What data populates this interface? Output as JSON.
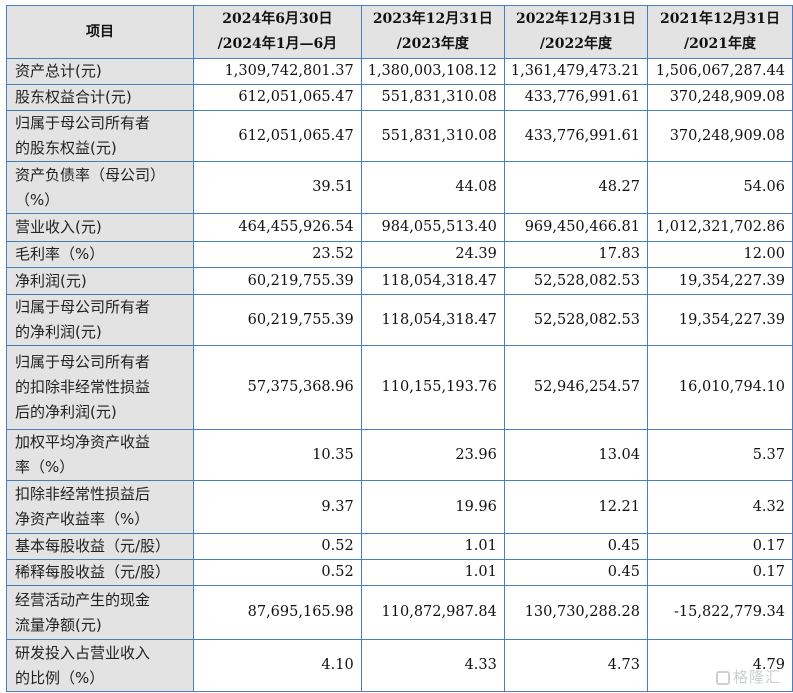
{
  "table": {
    "header": {
      "item": "项目",
      "columns": [
        {
          "line1": "2024年6月30日",
          "line2": "/2024年1月—6月"
        },
        {
          "line1": "2023年12月31日",
          "line2": "/2023年度"
        },
        {
          "line1": "2022年12月31日",
          "line2": "/2022年度"
        },
        {
          "line1": "2021年12月31日",
          "line2": "/2021年度"
        }
      ]
    },
    "rows": [
      {
        "label": "资产总计(元)",
        "values": [
          "1,309,742,801.37",
          "1,380,003,108.12",
          "1,361,479,473.21",
          "1,506,067,287.44"
        ]
      },
      {
        "label": "股东权益合计(元)",
        "values": [
          "612,051,065.47",
          "551,831,310.08",
          "433,776,991.61",
          "370,248,909.08"
        ]
      },
      {
        "label": "归属于母公司所有者\n的股东权益(元)",
        "values": [
          "612,051,065.47",
          "551,831,310.08",
          "433,776,991.61",
          "370,248,909.08"
        ]
      },
      {
        "label": "资产负债率（母公司）\n（%）",
        "values": [
          "39.51",
          "44.08",
          "48.27",
          "54.06"
        ]
      },
      {
        "label": "营业收入(元)",
        "values": [
          "464,455,926.54",
          "984,055,513.40",
          "969,450,466.81",
          "1,012,321,702.86"
        ]
      },
      {
        "label": "毛利率（%）",
        "values": [
          "23.52",
          "24.39",
          "17.83",
          "12.00"
        ]
      },
      {
        "label": "净利润(元)",
        "values": [
          "60,219,755.39",
          "118,054,318.47",
          "52,528,082.53",
          "19,354,227.39"
        ]
      },
      {
        "label": "归属于母公司所有者\n的净利润(元)",
        "values": [
          "60,219,755.39",
          "118,054,318.47",
          "52,528,082.53",
          "19,354,227.39"
        ]
      },
      {
        "label": "归属于母公司所有者\n的扣除非经常性损益\n后的净利润(元)",
        "values": [
          "57,375,368.96",
          "110,155,193.76",
          "52,946,254.57",
          "16,010,794.10"
        ]
      },
      {
        "label": "加权平均净资产收益\n率（%）",
        "values": [
          "10.35",
          "23.96",
          "13.04",
          "5.37"
        ]
      },
      {
        "label": "扣除非经常性损益后\n净资产收益率（%）",
        "values": [
          "9.37",
          "19.96",
          "12.21",
          "4.32"
        ]
      },
      {
        "label": "基本每股收益（元/股）",
        "values": [
          "0.52",
          "1.01",
          "0.45",
          "0.17"
        ]
      },
      {
        "label": "稀释每股收益（元/股）",
        "values": [
          "0.52",
          "1.01",
          "0.45",
          "0.17"
        ]
      },
      {
        "label": "经营活动产生的现金\n流量净额(元)",
        "values": [
          "87,695,165.98",
          "110,872,987.84",
          "130,730,288.28",
          "-15,822,779.34"
        ]
      },
      {
        "label": "研发投入占营业收入\n的比例（%）",
        "values": [
          "4.10",
          "4.33",
          "4.73",
          "4.79"
        ]
      }
    ]
  },
  "watermark": {
    "text": "格隆汇",
    "icon": "gelonghui-logo-icon"
  },
  "colors": {
    "border": "#4a7ebb",
    "label_bg": "#e3e3e3",
    "cell_bg": "#ffffff"
  }
}
